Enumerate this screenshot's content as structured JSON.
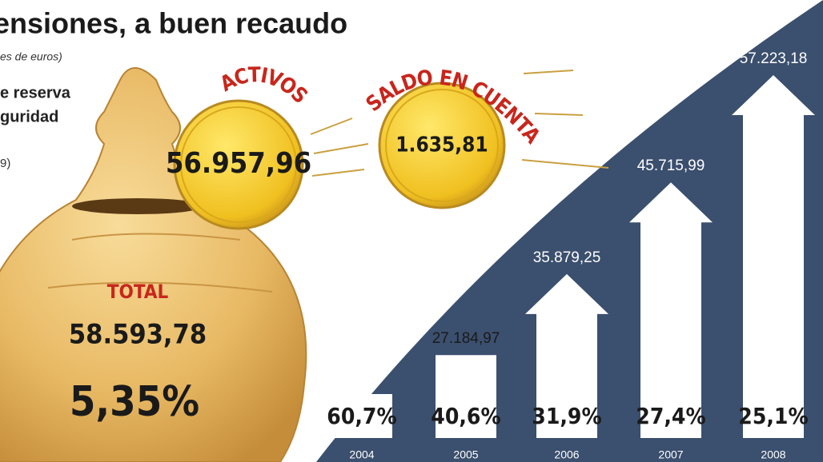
{
  "chart_data": {
    "type": "arrow-bar",
    "title": "ensiones, a buen recaudo",
    "subtitle": "es de euros)",
    "notes": [
      "e reserva",
      "guridad",
      "9)"
    ],
    "categories": [
      "2004",
      "2005",
      "2006",
      "2007",
      "2008"
    ],
    "values": [
      null,
      27184.97,
      35879.25,
      45715.99,
      57223.18
    ],
    "value_labels": [
      null,
      "27.184,97",
      "35.879,25",
      "45.715,99",
      "57.223,18"
    ],
    "growth": {
      "values": [
        60.7,
        40.6,
        31.9,
        27.4,
        25.1
      ],
      "value_labels": [
        "60,7%",
        "40,6%",
        "31,9%",
        "27,4%",
        "25,1%"
      ]
    },
    "ylim": [
      23000,
      58000
    ],
    "coins": [
      {
        "name": "ACTIVOS",
        "value": 56957.96,
        "label": "56.957,96",
        "color": "#f2c51e"
      },
      {
        "name": "SALDO EN CUENTA",
        "value": 1635.81,
        "label": "1.635,81",
        "color": "#f2c51e"
      }
    ],
    "total": {
      "name": "TOTAL",
      "value": 58593.78,
      "label": "58.593,78"
    },
    "share": {
      "value": 5.35,
      "label": "5,35%"
    },
    "colors": {
      "background_band": "#3b4f6e",
      "arrow": "#ffffff",
      "accent": "#c8261c"
    }
  }
}
